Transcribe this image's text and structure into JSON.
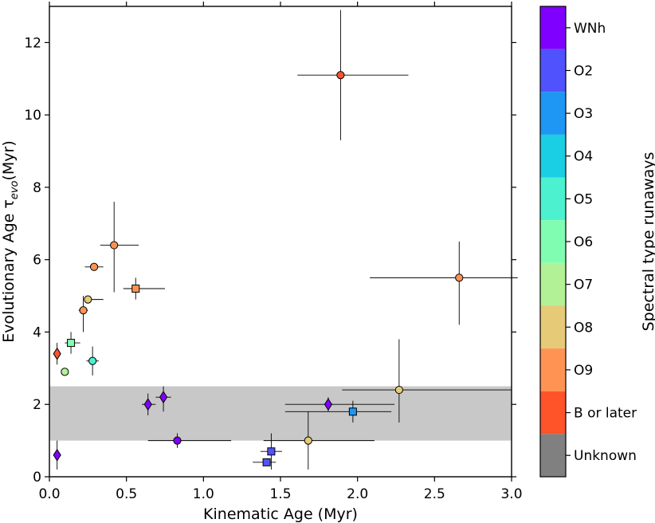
{
  "chart_data": {
    "type": "scatter",
    "title": "",
    "xlabel": "Kinematic Age (Myr)",
    "ylabel": "Evolutionary Age τ",
    "ylabel_sub": "evo",
    "ylabel_unit": "(Myr)",
    "xlim": [
      0,
      3.0
    ],
    "ylim": [
      0,
      13
    ],
    "xticks": [
      0.0,
      0.5,
      1.0,
      1.5,
      2.0,
      2.5,
      3.0
    ],
    "xtick_labels": [
      "0.0",
      "0.5",
      "1.0",
      "1.5",
      "2.0",
      "2.5",
      "3.0"
    ],
    "yticks": [
      0,
      2,
      4,
      6,
      8,
      10,
      12
    ],
    "ytick_labels": [
      "0",
      "2",
      "4",
      "6",
      "8",
      "10",
      "12"
    ],
    "grid": false,
    "shaded_band": {
      "y_from": 1.0,
      "y_to": 2.5,
      "color": "#c8c8c8"
    },
    "colorbar": {
      "label": "Spectral type runaways",
      "categories": [
        "WNh",
        "O2",
        "O3",
        "O4",
        "O5",
        "O6",
        "O7",
        "O8",
        "O9",
        "B or later",
        "Unknown"
      ],
      "colors": [
        "#8000ff",
        "#5053fd",
        "#1e96f3",
        "#1acee3",
        "#4cf2cf",
        "#81fdb1",
        "#b2f196",
        "#e6ca78",
        "#ff9353",
        "#ff532a",
        "#808080"
      ]
    },
    "points": [
      {
        "x": 1.89,
        "y": 11.1,
        "xerr": [
          0.28,
          0.44
        ],
        "yerr": [
          1.8,
          1.8
        ],
        "marker": "circle",
        "class": "B or later"
      },
      {
        "x": 2.66,
        "y": 5.5,
        "xerr": [
          0.58,
          0.38
        ],
        "yerr": [
          1.3,
          1.0
        ],
        "marker": "circle",
        "class": "O9"
      },
      {
        "x": 0.42,
        "y": 6.4,
        "xerr": [
          0.09,
          0.16
        ],
        "yerr": [
          1.3,
          1.2
        ],
        "marker": "circle",
        "class": "O9"
      },
      {
        "x": 0.29,
        "y": 5.8,
        "xerr": [
          0.06,
          0.06
        ],
        "yerr": [
          0.1,
          0.1
        ],
        "marker": "circle",
        "class": "O9"
      },
      {
        "x": 0.56,
        "y": 5.2,
        "xerr": [
          0.08,
          0.19
        ],
        "yerr": [
          0.3,
          0.3
        ],
        "marker": "square",
        "class": "O9"
      },
      {
        "x": 0.25,
        "y": 4.9,
        "xerr": [
          0.0,
          0.1
        ],
        "yerr": [
          0.0,
          0.0
        ],
        "marker": "circle",
        "class": "O8"
      },
      {
        "x": 0.22,
        "y": 4.6,
        "xerr": [
          0.03,
          0.03
        ],
        "yerr": [
          0.6,
          0.4
        ],
        "marker": "circle",
        "class": "O9"
      },
      {
        "x": 0.14,
        "y": 3.7,
        "xerr": [
          0.04,
          0.06
        ],
        "yerr": [
          0.3,
          0.3
        ],
        "marker": "square",
        "class": "O6"
      },
      {
        "x": 0.05,
        "y": 3.4,
        "xerr": [
          0.0,
          0.0
        ],
        "yerr": [
          0.3,
          0.3
        ],
        "marker": "diamond",
        "class": "B or later"
      },
      {
        "x": 0.28,
        "y": 3.2,
        "xerr": [
          0.04,
          0.04
        ],
        "yerr": [
          0.4,
          0.4
        ],
        "marker": "circle",
        "class": "O5"
      },
      {
        "x": 0.1,
        "y": 2.9,
        "xerr": [
          0.0,
          0.0
        ],
        "yerr": [
          0.0,
          0.0
        ],
        "marker": "circle",
        "class": "O7"
      },
      {
        "x": 0.74,
        "y": 2.2,
        "xerr": [
          0.05,
          0.05
        ],
        "yerr": [
          0.4,
          0.3
        ],
        "marker": "diamond",
        "class": "WNh"
      },
      {
        "x": 0.64,
        "y": 2.0,
        "xerr": [
          0.04,
          0.05
        ],
        "yerr": [
          0.3,
          0.3
        ],
        "marker": "diamond",
        "class": "WNh"
      },
      {
        "x": 1.81,
        "y": 2.0,
        "xerr": [
          0.28,
          0.43
        ],
        "yerr": [
          0.2,
          0.2
        ],
        "marker": "diamond",
        "class": "WNh"
      },
      {
        "x": 2.27,
        "y": 2.4,
        "xerr": [
          0.37,
          0.73
        ],
        "yerr": [
          0.9,
          1.4
        ],
        "marker": "circle",
        "class": "O8"
      },
      {
        "x": 1.97,
        "y": 1.8,
        "xerr": [
          0.44,
          0.25
        ],
        "yerr": [
          0.3,
          0.3
        ],
        "marker": "square",
        "class": "O3"
      },
      {
        "x": 0.83,
        "y": 1.0,
        "xerr": [
          0.19,
          0.35
        ],
        "yerr": [
          0.2,
          0.2
        ],
        "marker": "circle",
        "class": "WNh"
      },
      {
        "x": 1.68,
        "y": 1.0,
        "xerr": [
          0.29,
          0.43
        ],
        "yerr": [
          0.8,
          0.8
        ],
        "marker": "circle",
        "class": "O8"
      },
      {
        "x": 1.44,
        "y": 0.7,
        "xerr": [
          0.07,
          0.07
        ],
        "yerr": [
          0.5,
          0.5
        ],
        "marker": "square",
        "class": "O2"
      },
      {
        "x": 1.41,
        "y": 0.4,
        "xerr": [
          0.09,
          0.06
        ],
        "yerr": [
          0.0,
          0.0
        ],
        "marker": "square",
        "class": "O2"
      },
      {
        "x": 0.05,
        "y": 0.6,
        "xerr": [
          0.0,
          0.0
        ],
        "yerr": [
          0.4,
          0.4
        ],
        "marker": "diamond",
        "class": "WNh"
      }
    ]
  }
}
